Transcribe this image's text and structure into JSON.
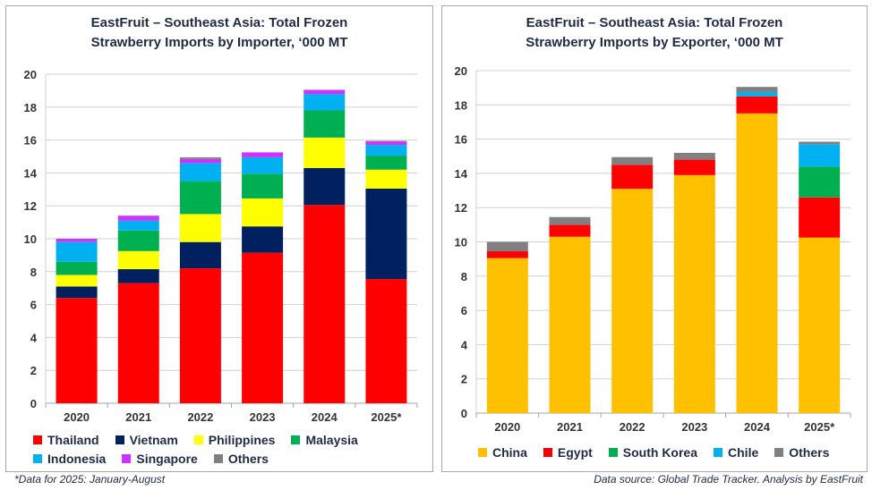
{
  "chart_data": [
    {
      "type": "bar",
      "stacked": true,
      "title": "EastFruit – Southeast Asia: Total Frozen Strawberry Imports by Importer, ‘000 MT",
      "title_lines": [
        "EastFruit – Southeast Asia: Total Frozen",
        "Strawberry Imports by Importer, ‘000 MT"
      ],
      "categories": [
        "2020",
        "2021",
        "2022",
        "2023",
        "2024",
        "2025*"
      ],
      "ylim": [
        0,
        20
      ],
      "yticks": [
        0,
        2,
        4,
        6,
        8,
        10,
        12,
        14,
        16,
        18,
        20
      ],
      "grid": true,
      "legend": "bottom",
      "series": [
        {
          "name": "Thailand",
          "color": "#ff0000",
          "values": [
            6.4,
            7.3,
            8.2,
            9.15,
            12.05,
            7.55
          ]
        },
        {
          "name": "Vietnam",
          "color": "#002060",
          "values": [
            0.7,
            0.85,
            1.6,
            1.6,
            2.25,
            5.5
          ]
        },
        {
          "name": "Philippines",
          "color": "#ffff00",
          "values": [
            0.7,
            1.1,
            1.7,
            1.7,
            1.85,
            1.15
          ]
        },
        {
          "name": "Malaysia",
          "color": "#00b050",
          "values": [
            0.8,
            1.25,
            2.0,
            1.5,
            1.65,
            0.85
          ]
        },
        {
          "name": "Indonesia",
          "color": "#00b0f0",
          "values": [
            1.2,
            0.6,
            1.1,
            1.0,
            1.0,
            0.65
          ]
        },
        {
          "name": "Singapore",
          "color": "#cc33ff",
          "values": [
            0.2,
            0.3,
            0.25,
            0.3,
            0.25,
            0.2
          ]
        },
        {
          "name": "Others",
          "color": "#808080",
          "values": [
            0.0,
            0.0,
            0.1,
            0.0,
            0.0,
            0.05
          ]
        }
      ]
    },
    {
      "type": "bar",
      "stacked": true,
      "title": "EastFruit – Southeast Asia: Total Frozen Strawberry Imports by Exporter, ‘000 MT",
      "title_lines": [
        "EastFruit – Southeast Asia: Total Frozen",
        "Strawberry Imports by Exporter, ‘000 MT"
      ],
      "categories": [
        "2020",
        "2021",
        "2022",
        "2023",
        "2024",
        "2025*"
      ],
      "ylim": [
        0,
        20
      ],
      "yticks": [
        0,
        2,
        4,
        6,
        8,
        10,
        12,
        14,
        16,
        18,
        20
      ],
      "grid": true,
      "legend": "bottom",
      "series": [
        {
          "name": "China",
          "color": "#ffc000",
          "values": [
            9.05,
            10.3,
            13.1,
            13.9,
            17.5,
            10.25
          ]
        },
        {
          "name": "Egypt",
          "color": "#ff0000",
          "values": [
            0.4,
            0.7,
            1.4,
            0.9,
            1.0,
            2.35
          ]
        },
        {
          "name": "South Korea",
          "color": "#00b050",
          "values": [
            0,
            0,
            0,
            0,
            0,
            1.8
          ]
        },
        {
          "name": "Chile",
          "color": "#00b0f0",
          "values": [
            0,
            0,
            0,
            0,
            0.25,
            1.3
          ]
        },
        {
          "name": "Others",
          "color": "#808080",
          "values": [
            0.55,
            0.45,
            0.45,
            0.4,
            0.3,
            0.15
          ]
        }
      ]
    }
  ],
  "footnote_left": "*Data for 2025: January-August",
  "footnote_right": "Data source: Global Trade Tracker. Analysis by  EastFruit"
}
